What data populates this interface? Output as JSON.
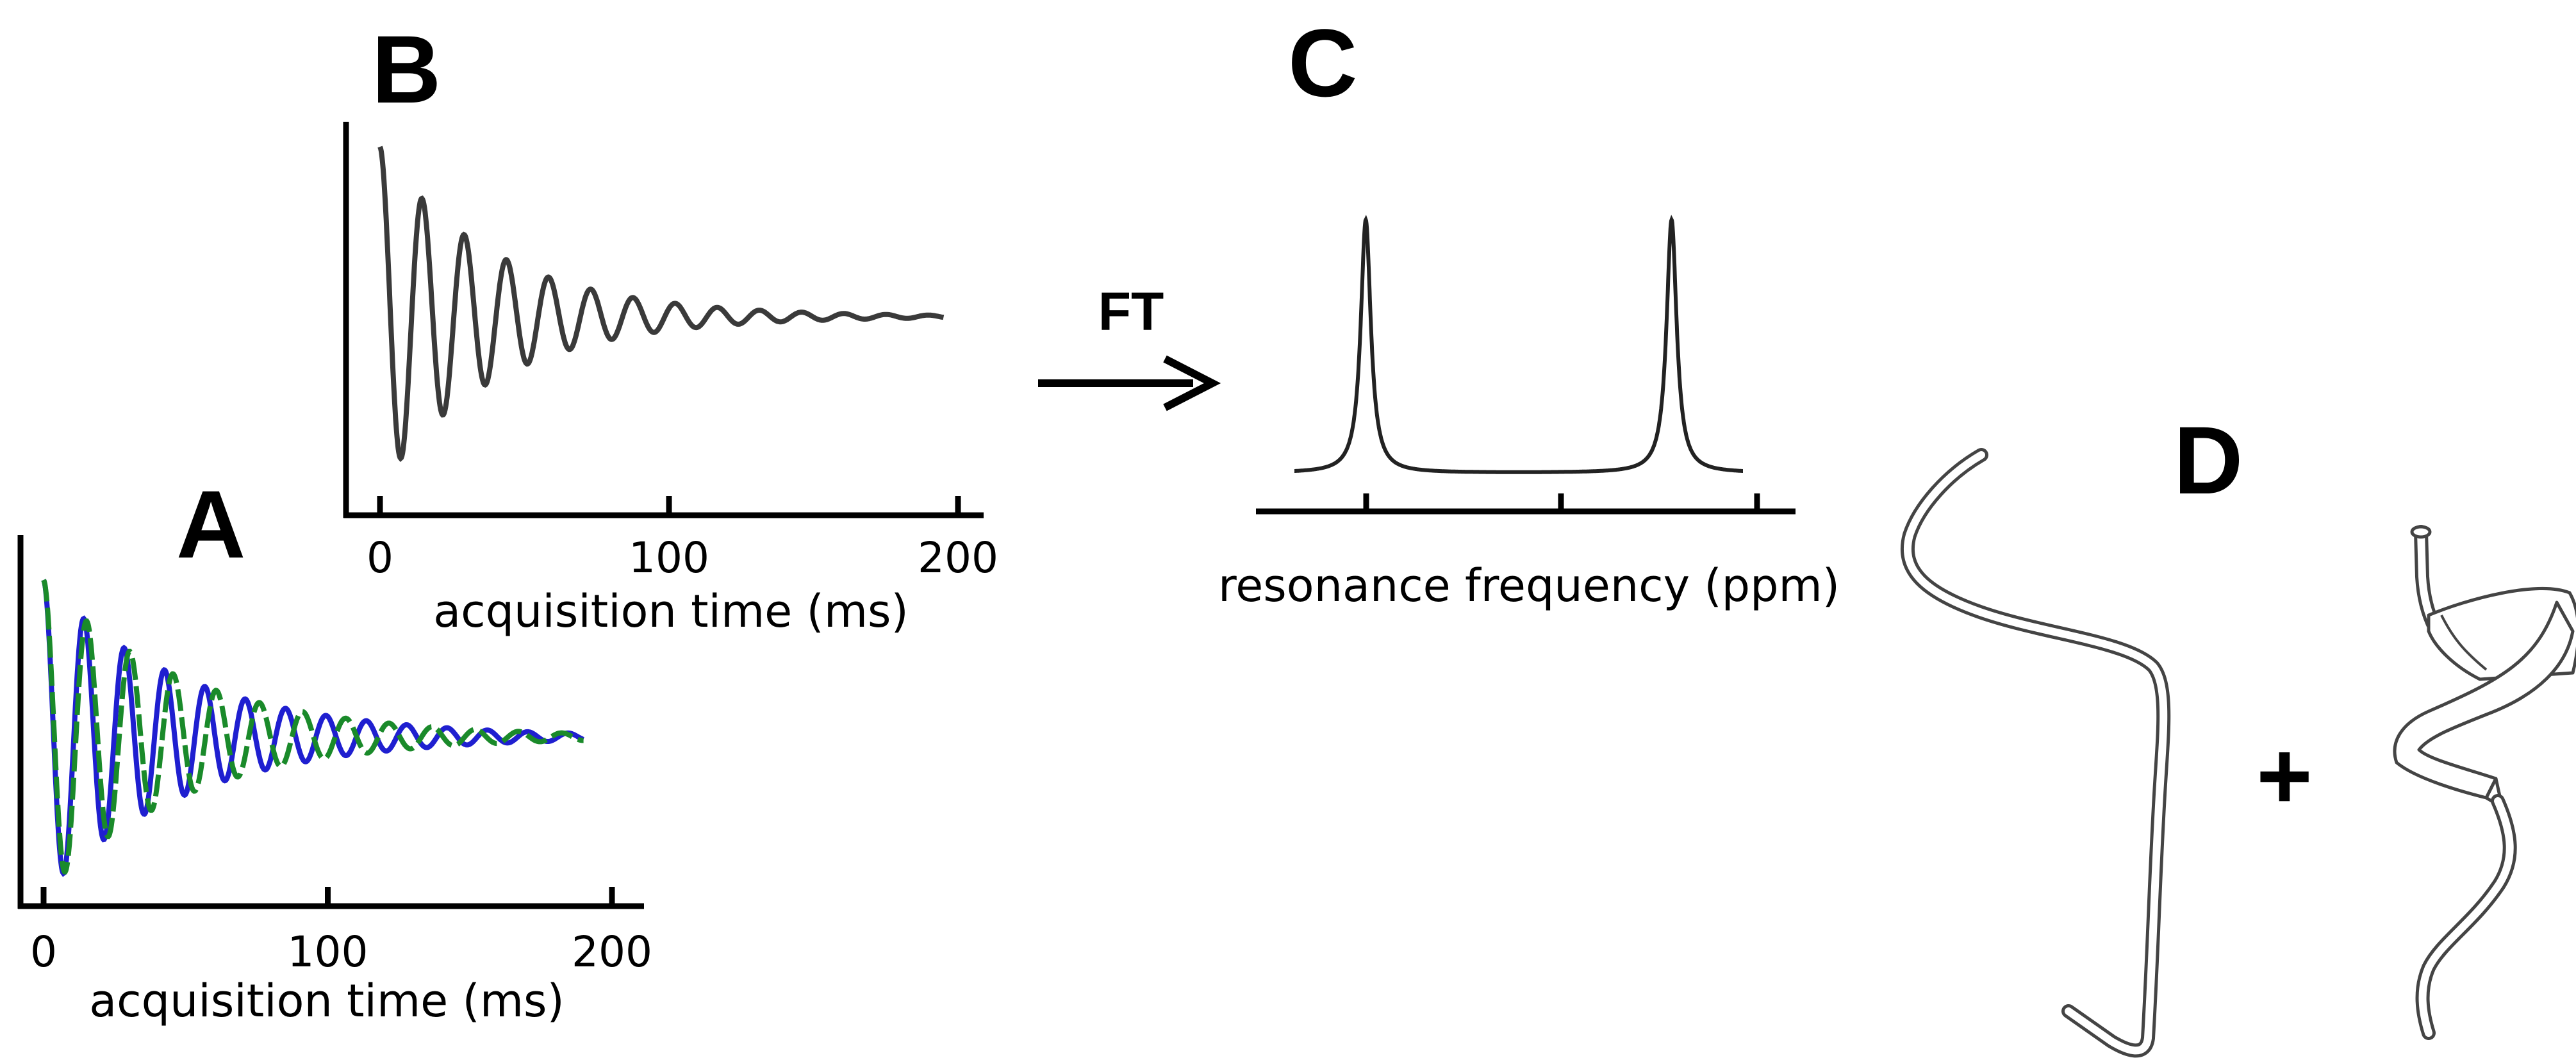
{
  "panels": {
    "a": {
      "letter": "A"
    },
    "b": {
      "letter": "B"
    },
    "c": {
      "letter": "C"
    },
    "d": {
      "letter": "D"
    }
  },
  "arrow": {
    "label": "FT"
  },
  "plus": {
    "symbol": "+"
  },
  "colors": {
    "fid_b": "#3a3a3a",
    "series_blue": "#1f1fd0",
    "series_green": "#1a8a2a",
    "axis": "#000000",
    "tube": "#444444"
  },
  "chart_data": [
    {
      "id": "panel-a",
      "type": "line",
      "title": "",
      "xlabel": "acquisition time (ms)",
      "ylabel": "",
      "xlim": [
        0,
        200
      ],
      "x_ticks": [
        0,
        100,
        200
      ],
      "x_tick_labels": [
        "0",
        "100",
        "200"
      ],
      "grid": false,
      "series": [
        {
          "color": "#1f1fd0",
          "period_ms": 14.2,
          "decay_ms": 50,
          "amplitude": 1.0,
          "duration_ms": 190
        },
        {
          "color": "#1a8a2a",
          "period_ms": 15.2,
          "decay_ms": 50,
          "amplitude": 1.0,
          "duration_ms": 190
        }
      ]
    },
    {
      "id": "panel-b",
      "type": "line",
      "title": "",
      "xlabel": "acquisition time (ms)",
      "ylabel": "",
      "xlim": [
        0,
        200
      ],
      "x_ticks": [
        0,
        100,
        200
      ],
      "x_tick_labels": [
        "0",
        "100",
        "200"
      ],
      "grid": false,
      "series": [
        {
          "color": "#3a3a3a",
          "period_ms": 14.6,
          "decay_ms": 40,
          "amplitude": 1.0,
          "duration_ms": 195
        }
      ]
    },
    {
      "id": "panel-c",
      "type": "line",
      "title": "",
      "xlabel": "resonance frequency (ppm)",
      "ylabel": "",
      "x_ticks": [
        1,
        2,
        3
      ],
      "x_tick_labels": [],
      "grid": false,
      "peaks": [
        {
          "position": 1.25,
          "height": 1.0,
          "width": 0.03
        },
        {
          "position": 2.75,
          "height": 1.0,
          "width": 0.03
        }
      ]
    }
  ]
}
